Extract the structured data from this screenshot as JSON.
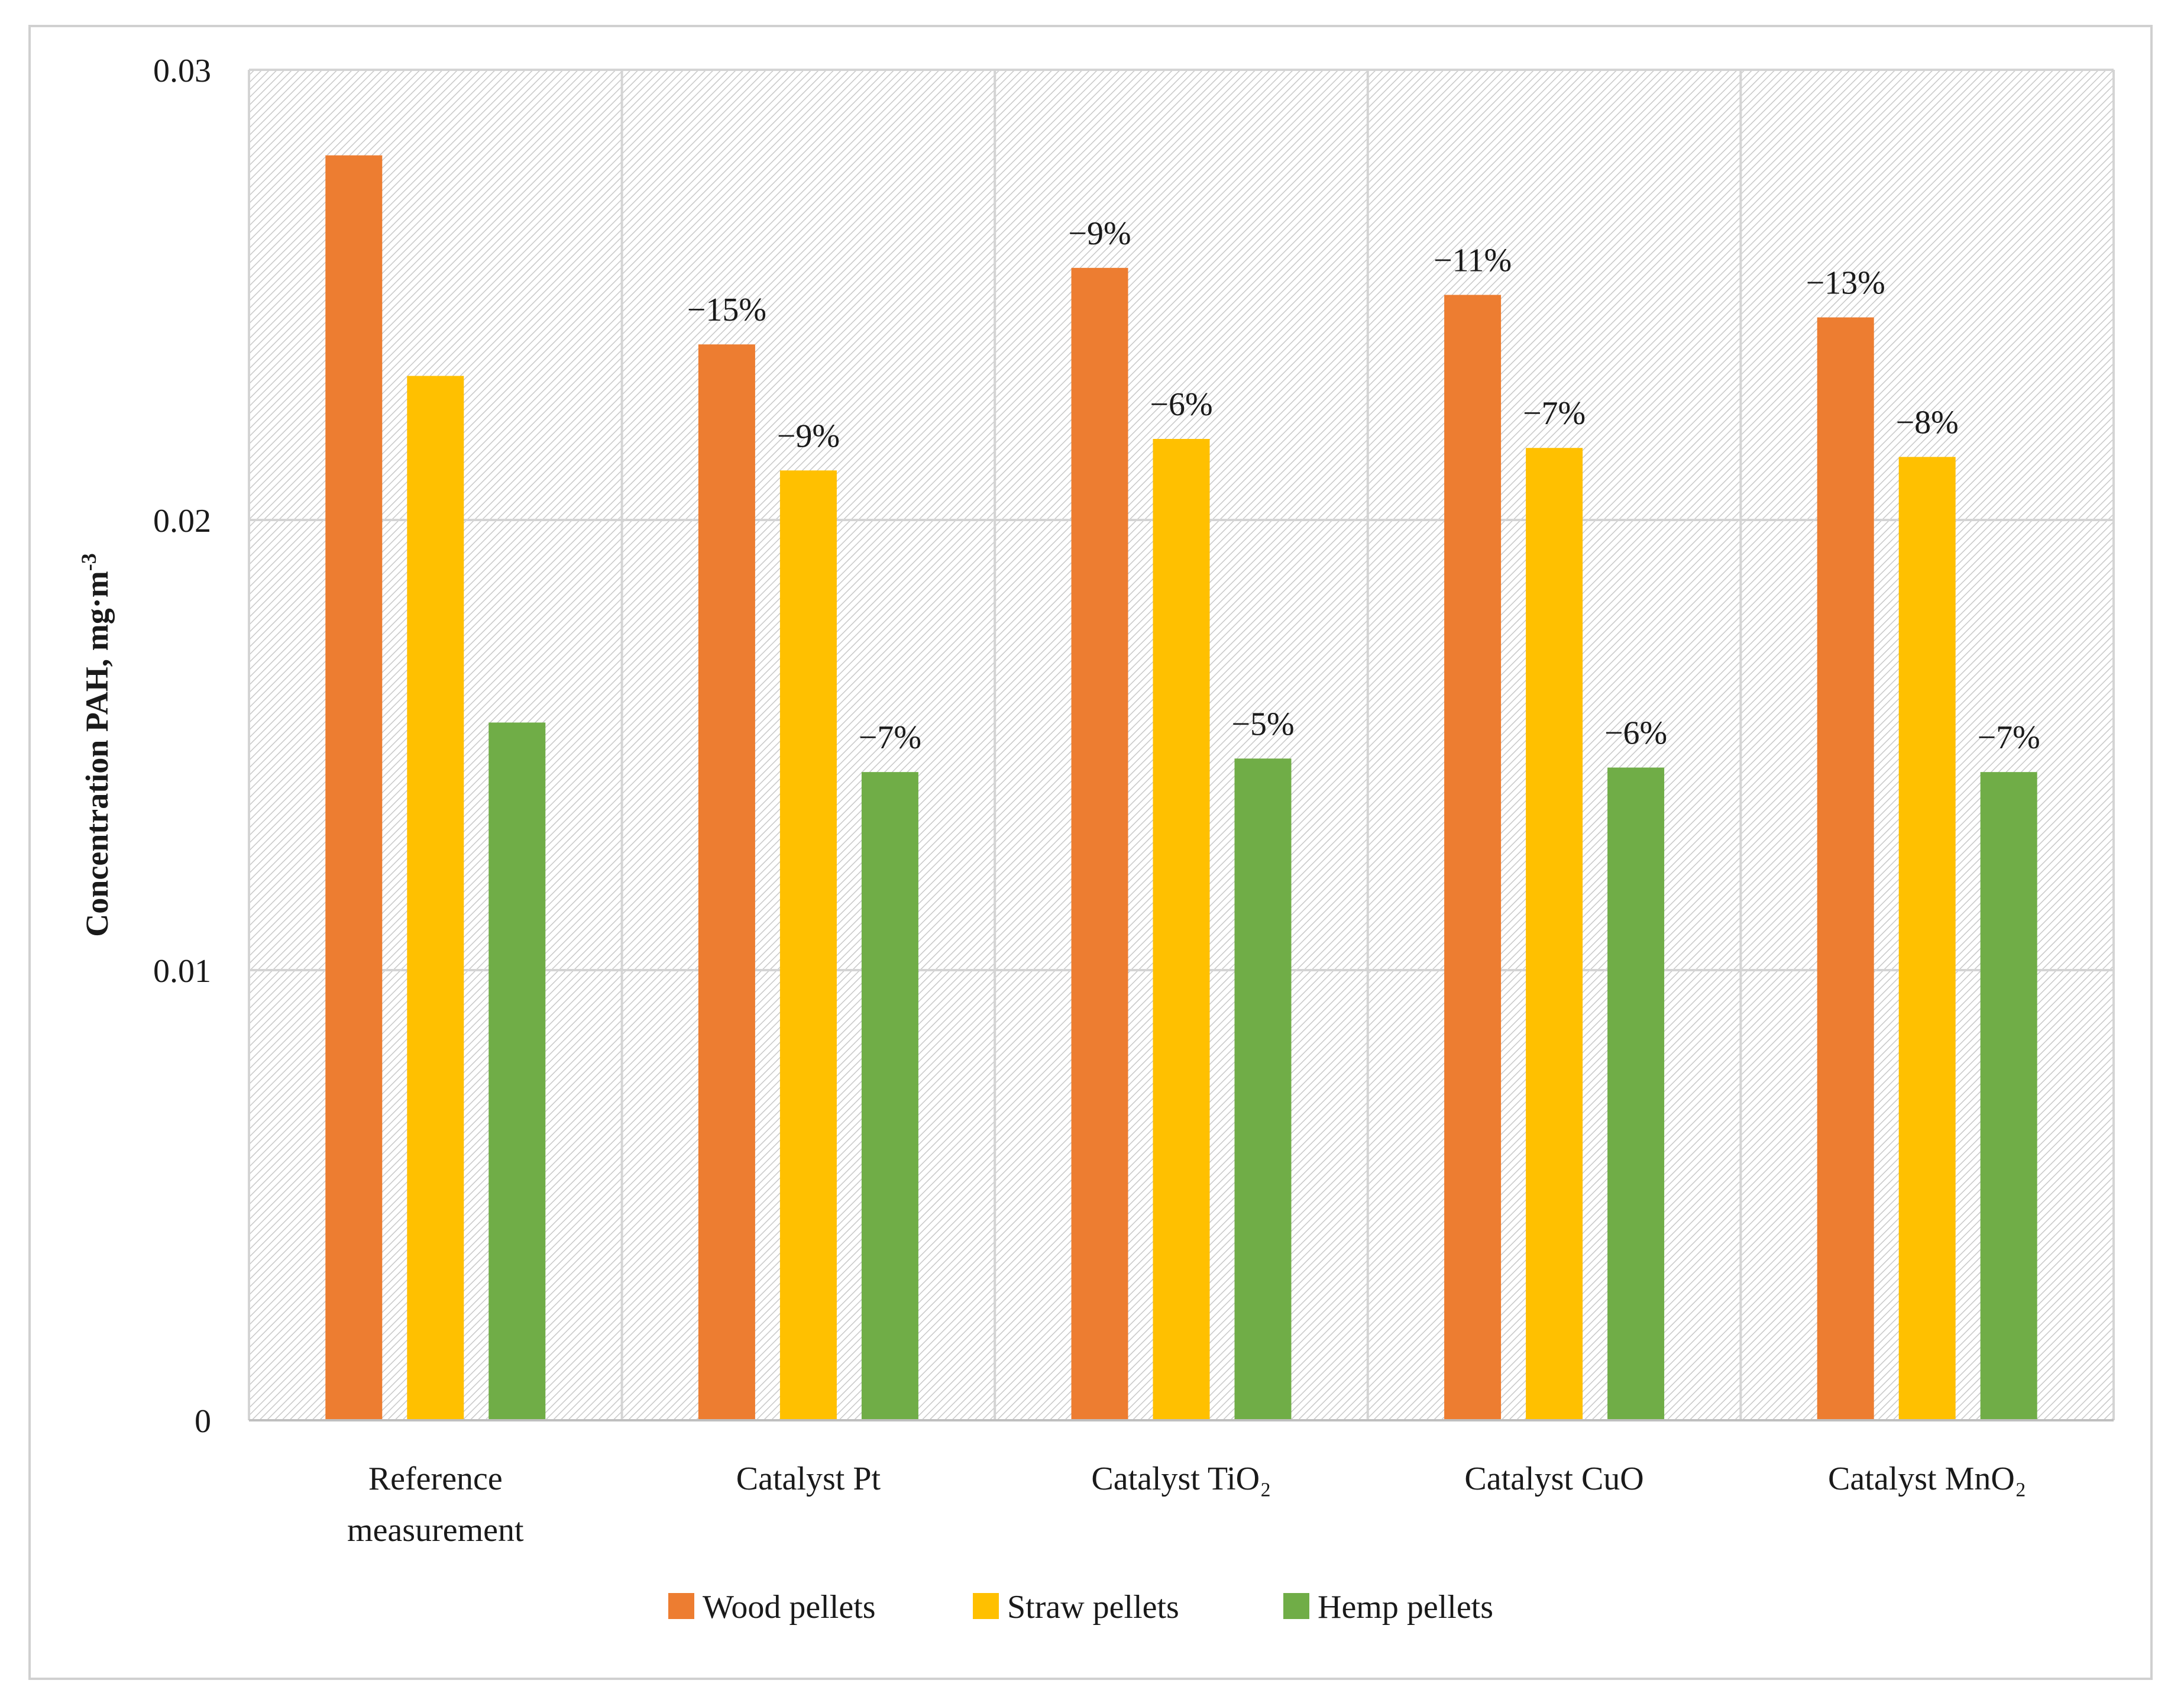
{
  "chart_data": {
    "type": "bar",
    "title": "",
    "xlabel": "",
    "ylabel": "Concentration PAH, mg·m",
    "ylabel_superscript": "-3",
    "ylim": [
      0,
      0.03
    ],
    "yticks": [
      {
        "value": 0,
        "label": "0"
      },
      {
        "value": 0.01,
        "label": "0.01"
      },
      {
        "value": 0.02,
        "label": "0.02"
      },
      {
        "value": 0.03,
        "label": "0.03"
      }
    ],
    "categories": [
      {
        "line1": "Reference",
        "line2": "measurement"
      },
      {
        "line1": "Catalyst Pt",
        "line2": ""
      },
      {
        "line1": "Catalyst  TiO₂",
        "line2": ""
      },
      {
        "line1": "Catalyst CuO",
        "line2": ""
      },
      {
        "line1": "Catalyst MnO₂",
        "line2": ""
      }
    ],
    "series": [
      {
        "name": "Wood pellets",
        "color": "#ED7D31",
        "values": [
          0.0281,
          0.0239,
          0.0256,
          0.025,
          0.0245
        ],
        "labels": [
          "",
          "−15%",
          "−9%",
          "−11%",
          "−13%"
        ]
      },
      {
        "name": "Straw pellets",
        "color": "#FFC000",
        "values": [
          0.0232,
          0.0211,
          0.0218,
          0.0216,
          0.0214
        ],
        "labels": [
          "",
          "−9%",
          "−6%",
          "−7%",
          "−8%"
        ]
      },
      {
        "name": "Hemp pellets",
        "color": "#70AD47",
        "values": [
          0.0155,
          0.0144,
          0.0147,
          0.0145,
          0.0144
        ],
        "labels": [
          "",
          "−7%",
          "−5%",
          "−6%",
          "−7%"
        ]
      }
    ],
    "grid": true,
    "legend_position": "bottom"
  }
}
